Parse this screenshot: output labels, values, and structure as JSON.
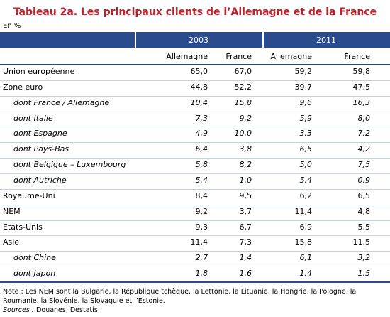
{
  "title": "Tableau 2a. Les principaux clients de l’Allemagne et de la France",
  "unit": "En %",
  "table": {
    "years": [
      "2003",
      "2011"
    ],
    "columns": [
      "Allemagne",
      "France",
      "Allemagne",
      "France"
    ],
    "rows": [
      [
        "Union européenne",
        "65,0",
        "67,0",
        "59,2",
        "59,8"
      ],
      [
        "Zone euro",
        "44,8",
        "52,2",
        "39,7",
        "47,5"
      ],
      [
        "dont France / Allemagne",
        "10,4",
        "15,8",
        "9,6",
        "16,3"
      ],
      [
        "dont Italie",
        "7,3",
        "9,2",
        "5,9",
        "8,0"
      ],
      [
        "dont Espagne",
        "4,9",
        "10,0",
        "3,3",
        "7,2"
      ],
      [
        "dont Pays-Bas",
        "6,4",
        "3,8",
        "6,5",
        "4,2"
      ],
      [
        "dont Belgique – Luxembourg",
        "5,8",
        "8,2",
        "5,0",
        "7,5"
      ],
      [
        "dont Autriche",
        "5,4",
        "1,0",
        "5,4",
        "0,9"
      ],
      [
        "Royaume-Uni",
        "8,4",
        "9,5",
        "6,2",
        "6,5"
      ],
      [
        "NEM",
        "9,2",
        "3,7",
        "11,4",
        "4,8"
      ],
      [
        "Etats-Unis",
        "9,3",
        "6,7",
        "6,9",
        "5,5"
      ],
      [
        "Asie",
        "11,4",
        "7,3",
        "15,8",
        "11,5"
      ],
      [
        "dont Chine",
        "2,7",
        "1,4",
        "6,1",
        "3,2"
      ],
      [
        "dont Japon",
        "1,8",
        "1,6",
        "1,4",
        "1,5"
      ]
    ]
  },
  "note": "Note : Les NEM sont la Bulgarie, la République tchèque, la Lettonie, la Lituanie, la Hongrie, la Pologne, la Roumanie, la Slovénie, la Slovaquie et l’Estonie.",
  "sources": {
    "label": "Sources :",
    "text": "Douanes, Destatis."
  }
}
